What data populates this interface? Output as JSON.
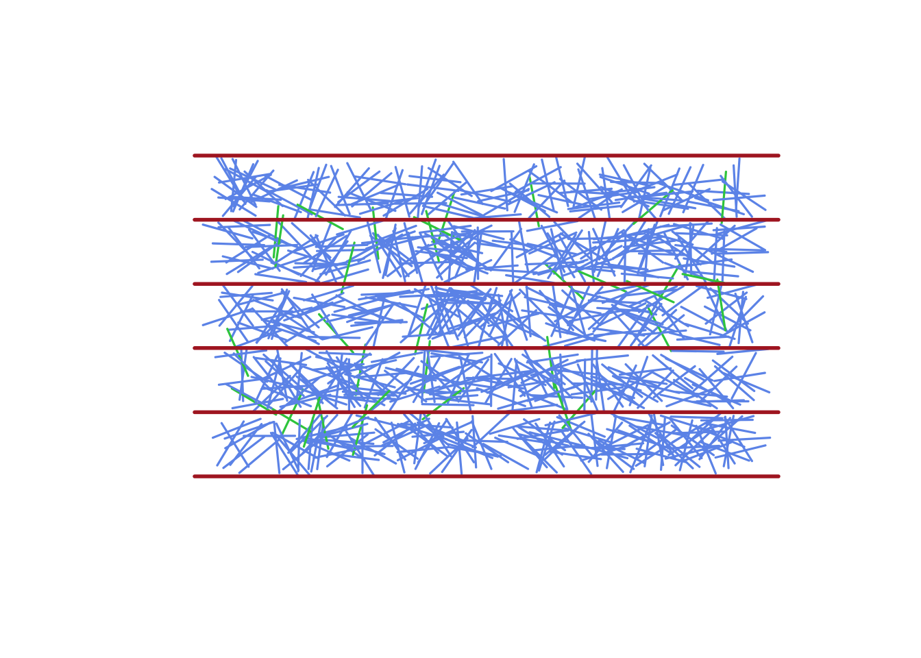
{
  "diagram": {
    "type": "buffon-needle-simulation",
    "colors": {
      "background": "#ffffff",
      "floor_lines": "#9e1520",
      "needle_no_cross": "#5b82e6",
      "needle_crossing": "#2ec43c"
    },
    "floor_lines": {
      "count": 6,
      "spacing_units": 1
    },
    "needles": {
      "length_units": 0.8,
      "count_non_crossing": 780,
      "count_crossing": 34,
      "x_range_units": [
        0.5,
        8.6
      ],
      "y_range_units": [
        0.35,
        4.7
      ]
    }
  }
}
